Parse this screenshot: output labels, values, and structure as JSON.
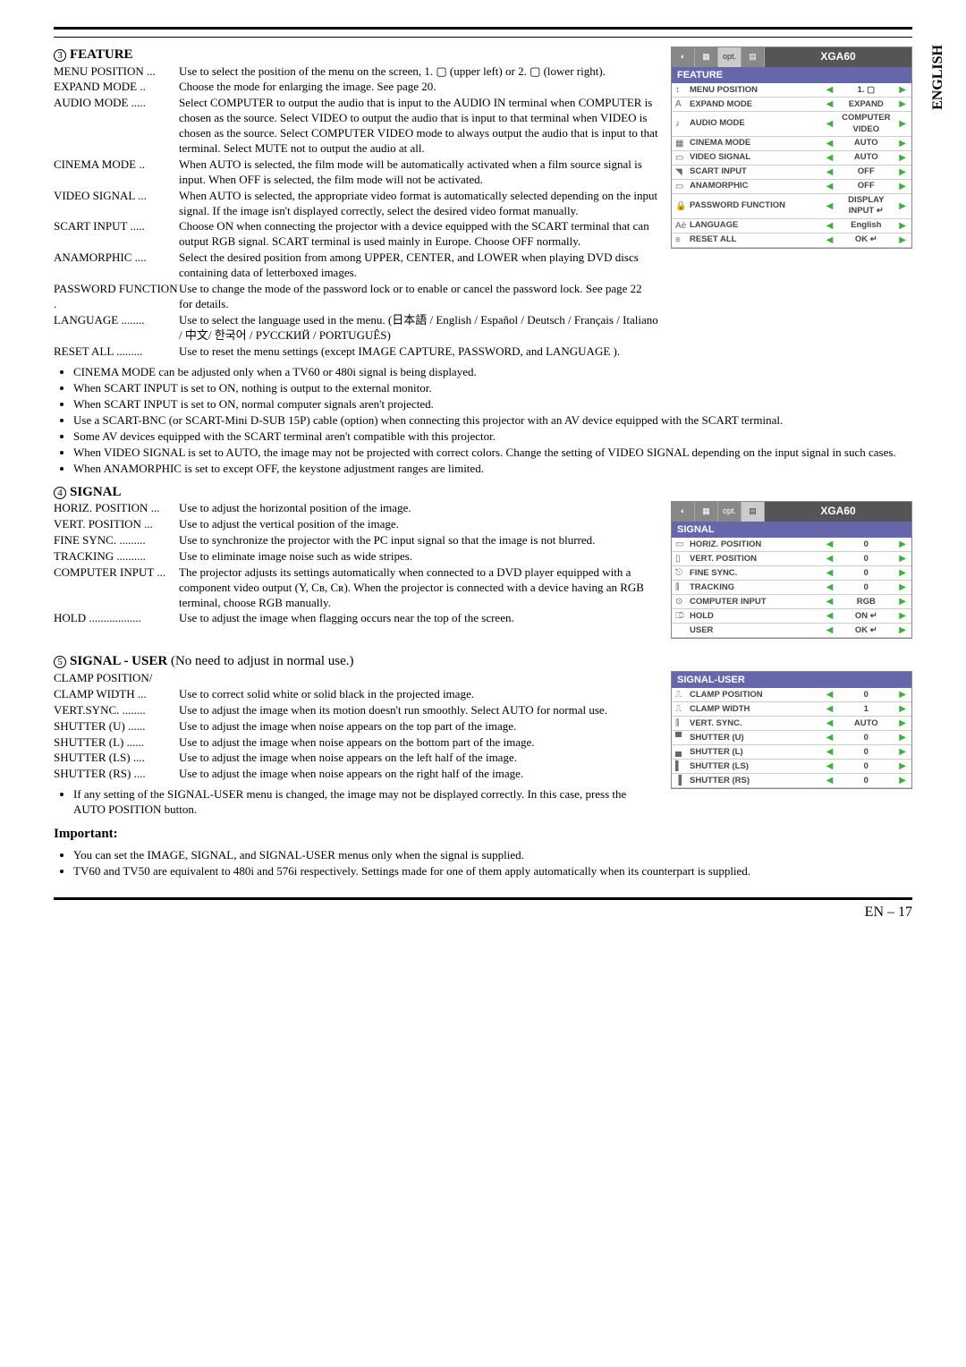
{
  "sidebar_lang": "ENGLISH",
  "section3": {
    "num": "3",
    "title": "FEATURE",
    "items": [
      {
        "term": "MENU POSITION",
        "sep": "...",
        "desc": "Use to select the position of the menu on the screen,  1. ▢ (upper left) or 2. ▢ (lower right)."
      },
      {
        "term": "EXPAND MODE",
        "sep": "..",
        "desc": "Choose the mode for enlarging the image. See page 20."
      },
      {
        "term": "AUDIO MODE",
        "sep": ".....",
        "desc": "Select COMPUTER to output the audio that is input to the AUDIO IN terminal when COMPUTER is chosen as the source. Select VIDEO to output the audio that is input to that terminal when VIDEO is chosen as the source. Select COMPUTER VIDEO mode to always output the audio that is input to that terminal. Select MUTE not to output the audio at all."
      },
      {
        "term": "CINEMA MODE",
        "sep": "..",
        "desc": "When AUTO is selected, the film mode will be automatically activated when a film source signal is input. When OFF is selected, the film mode will not be activated."
      },
      {
        "term": "VIDEO SIGNAL",
        "sep": "...",
        "desc": "When AUTO is selected, the appropriate video format is automatically selected depending on the input signal. If the image isn't displayed correctly, select the desired video format manually."
      },
      {
        "term": "SCART INPUT",
        "sep": ".....",
        "desc": "Choose ON when connecting the projector with a device equipped with the SCART terminal that can output RGB signal. SCART terminal is used mainly in Europe. Choose OFF normally."
      },
      {
        "term": "ANAMORPHIC",
        "sep": "....",
        "desc": "Select the desired position from among UPPER, CENTER, and LOWER when playing DVD discs containing data of letterboxed images."
      },
      {
        "term": "PASSWORD FUNCTION",
        "sep": ".",
        "desc": "Use to change the mode of the password lock or to enable or cancel the password lock. See page 22 for details."
      },
      {
        "term": "LANGUAGE",
        "sep": "........",
        "desc": "Use to select the language used in the menu. (日本語 / English / Español / Deutsch / Français / Italiano / 中文/ 한국어 / РУССКИЙ / PORTUGUÊS)"
      },
      {
        "term": "RESET ALL",
        "sep": ".........",
        "desc": "Use to reset the menu settings (except IMAGE CAPTURE, PASSWORD, and LANGUAGE )."
      }
    ],
    "bullets": [
      "CINEMA MODE can be adjusted only when a TV60 or 480i signal is being displayed.",
      "When SCART INPUT is set to ON, nothing is output to the external monitor.",
      "When SCART INPUT is set to ON, normal computer signals aren't projected.",
      "Use a SCART-BNC (or SCART-Mini D-SUB 15P) cable (option) when connecting this projector with an AV device equipped with the SCART terminal.",
      "Some AV devices equipped with the SCART terminal aren't compatible with this projector.",
      "When VIDEO SIGNAL is set to AUTO, the image may not be projected with correct colors. Change the setting of VIDEO SIGNAL depending on the input signal in such cases.",
      "When ANAMORPHIC is set to except OFF, the keystone adjustment ranges are limited."
    ]
  },
  "section4": {
    "num": "4",
    "title": "SIGNAL",
    "items": [
      {
        "term": "HORIZ. POSITION",
        "sep": "...",
        "desc": "Use to adjust the horizontal position of the image."
      },
      {
        "term": "VERT. POSITION",
        "sep": "...",
        "desc": "Use to adjust the vertical position of the image."
      },
      {
        "term": "FINE SYNC.",
        "sep": ".........",
        "desc": "Use to synchronize the projector with the PC input signal so that the image is not blurred."
      },
      {
        "term": "TRACKING",
        "sep": "..........",
        "desc": "Use to eliminate image noise such as wide stripes."
      },
      {
        "term": "COMPUTER INPUT",
        "sep": "...",
        "desc": "The projector adjusts its settings automatically when connected to a DVD player equipped with a component video output (Y, Cʙ, Cʀ). When the projector is connected with a device having an RGB terminal, choose RGB manually."
      },
      {
        "term": "HOLD",
        "sep": "..................",
        "desc": "Use to adjust the image when flagging occurs near the top of the screen."
      }
    ]
  },
  "section5": {
    "num": "5",
    "title_pre": "SIGNAL - USER ",
    "title_note": "(No need to adjust in normal use.)",
    "items": [
      {
        "term": "CLAMP POSITION/",
        "sep": "",
        "desc": ""
      },
      {
        "term": "CLAMP WIDTH",
        "sep": "...",
        "desc": "Use to correct solid white or solid black in the projected image."
      },
      {
        "term": "VERT.SYNC.",
        "sep": "........",
        "desc": "Use to adjust the image when its motion doesn't run smoothly. Select AUTO for normal use."
      },
      {
        "term": "SHUTTER (U)",
        "sep": "......",
        "desc": "Use to adjust the image when noise appears on the top part of the image."
      },
      {
        "term": "SHUTTER (L)",
        "sep": "......",
        "desc": "Use to adjust the image when noise appears on the bottom part of the image."
      },
      {
        "term": "SHUTTER (LS)",
        "sep": "....",
        "desc": "Use to adjust the image when noise appears on the left half of the image."
      },
      {
        "term": "SHUTTER (RS)",
        "sep": "....",
        "desc": "Use to adjust the image when noise appears on the right half of the image."
      }
    ],
    "bullet": "If any setting of the SIGNAL-USER menu is changed, the image may not be displayed correctly. In this case, press the AUTO POSITION button."
  },
  "important": {
    "title": "Important:",
    "bullets": [
      "You can set the IMAGE, SIGNAL, and SIGNAL-USER menus only when the signal is supplied.",
      "TV60 and TV50 are equivalent to 480i and 576i respectively. Settings made for one of them apply automatically when its counterpart is supplied."
    ]
  },
  "pagenum": "EN – 17",
  "menu_feature": {
    "header_title": "XGA60",
    "section": "FEATURE",
    "rows": [
      {
        "icon": "↕",
        "label": "MENU POSITION",
        "val": "1. ▢"
      },
      {
        "icon": "A",
        "label": "EXPAND MODE",
        "val": "EXPAND"
      },
      {
        "icon": "♪",
        "label": "AUDIO MODE",
        "val": "COMPUTER VIDEO"
      },
      {
        "icon": "▦",
        "label": "CINEMA MODE",
        "val": "AUTO"
      },
      {
        "icon": "▭",
        "label": "VIDEO SIGNAL",
        "val": "AUTO"
      },
      {
        "icon": "◥",
        "label": "SCART INPUT",
        "val": "OFF"
      },
      {
        "icon": "▭",
        "label": "ANAMORPHIC",
        "val": "OFF"
      },
      {
        "icon": "🔒",
        "label": "PASSWORD FUNCTION",
        "val": "DISPLAY INPUT ↵"
      },
      {
        "icon": "Aè",
        "label": "LANGUAGE",
        "val": "English"
      },
      {
        "icon": "≡",
        "label": "RESET ALL",
        "val": "OK ↵"
      }
    ]
  },
  "menu_signal": {
    "header_title": "XGA60",
    "section": "SIGNAL",
    "rows": [
      {
        "icon": "▭",
        "label": "HORIZ. POSITION",
        "val": "0"
      },
      {
        "icon": "▯",
        "label": "VERT. POSITION",
        "val": "0"
      },
      {
        "icon": "⎋",
        "label": "FINE SYNC.",
        "val": "0"
      },
      {
        "icon": "⫼",
        "label": "TRACKING",
        "val": "0"
      },
      {
        "icon": "⊙",
        "label": "COMPUTER INPUT",
        "val": "RGB"
      },
      {
        "icon": "⎄",
        "label": "HOLD",
        "val": "ON ↵"
      },
      {
        "icon": "",
        "label": "USER",
        "val": "OK ↵"
      }
    ]
  },
  "menu_user": {
    "section": "SIGNAL-USER",
    "rows": [
      {
        "icon": "⎍",
        "label": "CLAMP POSITION",
        "val": "0"
      },
      {
        "icon": "⎍",
        "label": "CLAMP WIDTH",
        "val": "1"
      },
      {
        "icon": "⫼",
        "label": "VERT. SYNC.",
        "val": "AUTO"
      },
      {
        "icon": "▀",
        "label": "SHUTTER (U)",
        "val": "0"
      },
      {
        "icon": "▄",
        "label": "SHUTTER (L)",
        "val": "0"
      },
      {
        "icon": "▌",
        "label": "SHUTTER (LS)",
        "val": "0"
      },
      {
        "icon": "▐",
        "label": "SHUTTER (RS)",
        "val": "0"
      }
    ]
  }
}
